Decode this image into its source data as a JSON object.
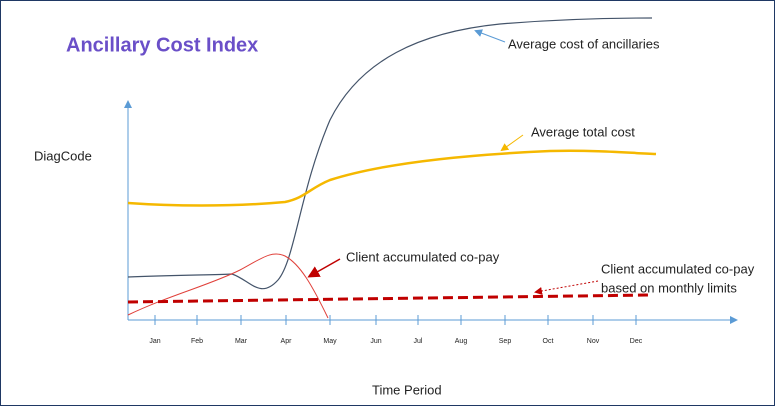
{
  "title": "Ancillary Cost Index",
  "y_label": "DiagCode",
  "x_label": "Time Period",
  "months": [
    "Jan",
    "Feb",
    "Mar",
    "Apr",
    "May",
    "Jun",
    "Jul",
    "Aug",
    "Sep",
    "Oct",
    "Nov",
    "Dec"
  ],
  "annotations": {
    "ancillaries": "Average cost of ancillaries",
    "total": "Average total cost",
    "copay": "Client accumulated co-pay",
    "copay_limits": [
      "Client accumulated co-pay",
      "based on monthly limits"
    ]
  }
}
